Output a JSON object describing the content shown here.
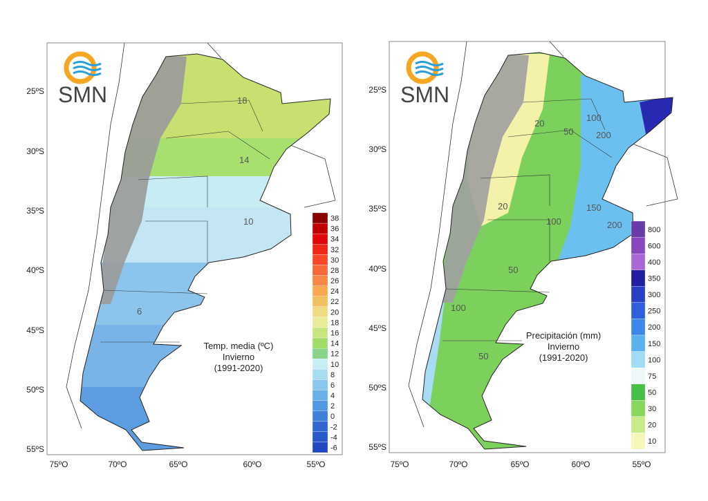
{
  "panels": [
    {
      "logo": "SMN",
      "y_labels": [
        "25ºS",
        "30ºS",
        "35ºS",
        "40ºS",
        "45ºS",
        "50ºS",
        "55ºS"
      ],
      "x_labels": [
        "75ºO",
        "70ºO",
        "65ºO",
        "60ºO",
        "55ºO"
      ],
      "legend": {
        "title": [
          "Temp. media (ºC)",
          "Invierno",
          "(1991-2020)"
        ],
        "ticks": [
          "38",
          "36",
          "34",
          "32",
          "30",
          "28",
          "26",
          "24",
          "22",
          "20",
          "18",
          "16",
          "14",
          "12",
          "10",
          "8",
          "6",
          "4",
          "2",
          "0",
          "-2",
          "-4",
          "-6"
        ],
        "colors": [
          "#8b0000",
          "#c00000",
          "#e00808",
          "#f02818",
          "#f84828",
          "#f86838",
          "#f88848",
          "#f8a850",
          "#f0c060",
          "#f0dc80",
          "#e8ec98",
          "#c8e680",
          "#a0dc68",
          "#88d488",
          "#c8eef4",
          "#a8dcf0",
          "#88c8ee",
          "#68b0e8",
          "#5098e0",
          "#3c80d8",
          "#3068d0",
          "#2858c8",
          "#2048c0"
        ]
      },
      "contour_labels": [
        "18",
        "14",
        "10",
        "6"
      ]
    },
    {
      "logo": "SMN",
      "y_labels": [
        "25ºS",
        "30ºS",
        "35ºS",
        "40ºS",
        "45ºS",
        "50ºS",
        "55ºS"
      ],
      "x_labels": [
        "75ºO",
        "70ºO",
        "65ºO",
        "60ºO",
        "55ºO"
      ],
      "legend": {
        "title": [
          "Precipitación (mm)",
          "Invierno",
          "(1991-2020)"
        ],
        "ticks": [
          "800",
          "600",
          "400",
          "350",
          "300",
          "250",
          "200",
          "150",
          "100",
          "75",
          "50",
          "30",
          "20",
          "10"
        ],
        "colors": [
          "#6a3aa8",
          "#8848c0",
          "#a868d8",
          "#2020a0",
          "#2840c8",
          "#3060e0",
          "#3c88e8",
          "#5cb0f0",
          "#a0dcf4",
          "#eef8f8",
          "#48c048",
          "#88d860",
          "#c8ea88",
          "#f6f6b8"
        ]
      },
      "contour_labels": [
        "20",
        "50",
        "100",
        "200",
        "150",
        "200",
        "100",
        "20",
        "50",
        "100",
        "50"
      ]
    }
  ]
}
